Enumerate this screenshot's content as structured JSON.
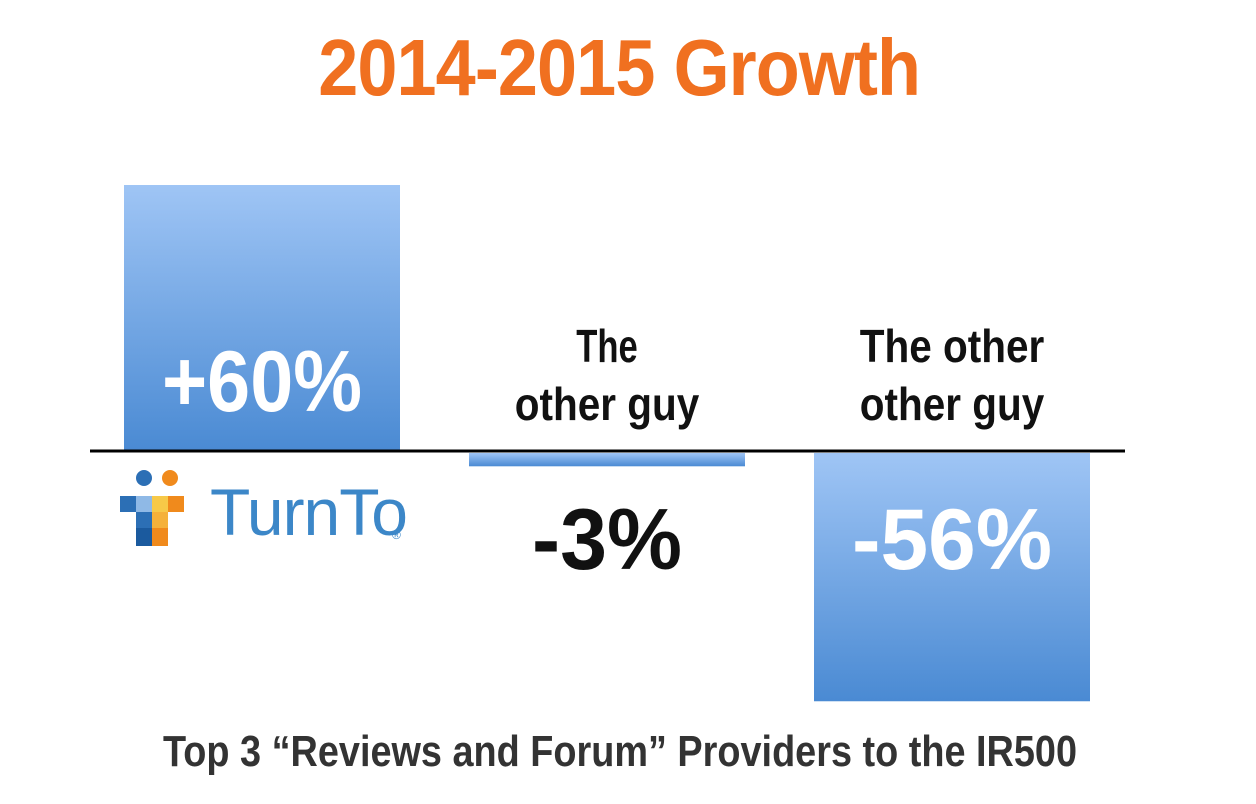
{
  "header": {
    "title": "2014-2015 Growth"
  },
  "footer": {
    "subtitle": "Top 3 “Reviews and Forum” Providers to the IR500"
  },
  "colors": {
    "title": "#f07020",
    "bar_top": "#9fc5f5",
    "bar_bottom": "#4a8ad3",
    "axis": "#000000"
  },
  "logo": {
    "text": "TurnTo",
    "reg": "®"
  },
  "chart_data": {
    "type": "bar",
    "categories": [
      "TurnTo",
      "The other guy",
      "The other other guy"
    ],
    "values": [
      60,
      -3,
      -56
    ],
    "data_labels": [
      "+60%",
      "-3%",
      "-56%"
    ],
    "category_labels": [
      [
        "",
        ""
      ],
      [
        "The",
        "other guy"
      ],
      [
        "The other",
        "other guy"
      ]
    ],
    "ylim": [
      -56,
      60
    ],
    "grid": false,
    "legend": "none"
  }
}
